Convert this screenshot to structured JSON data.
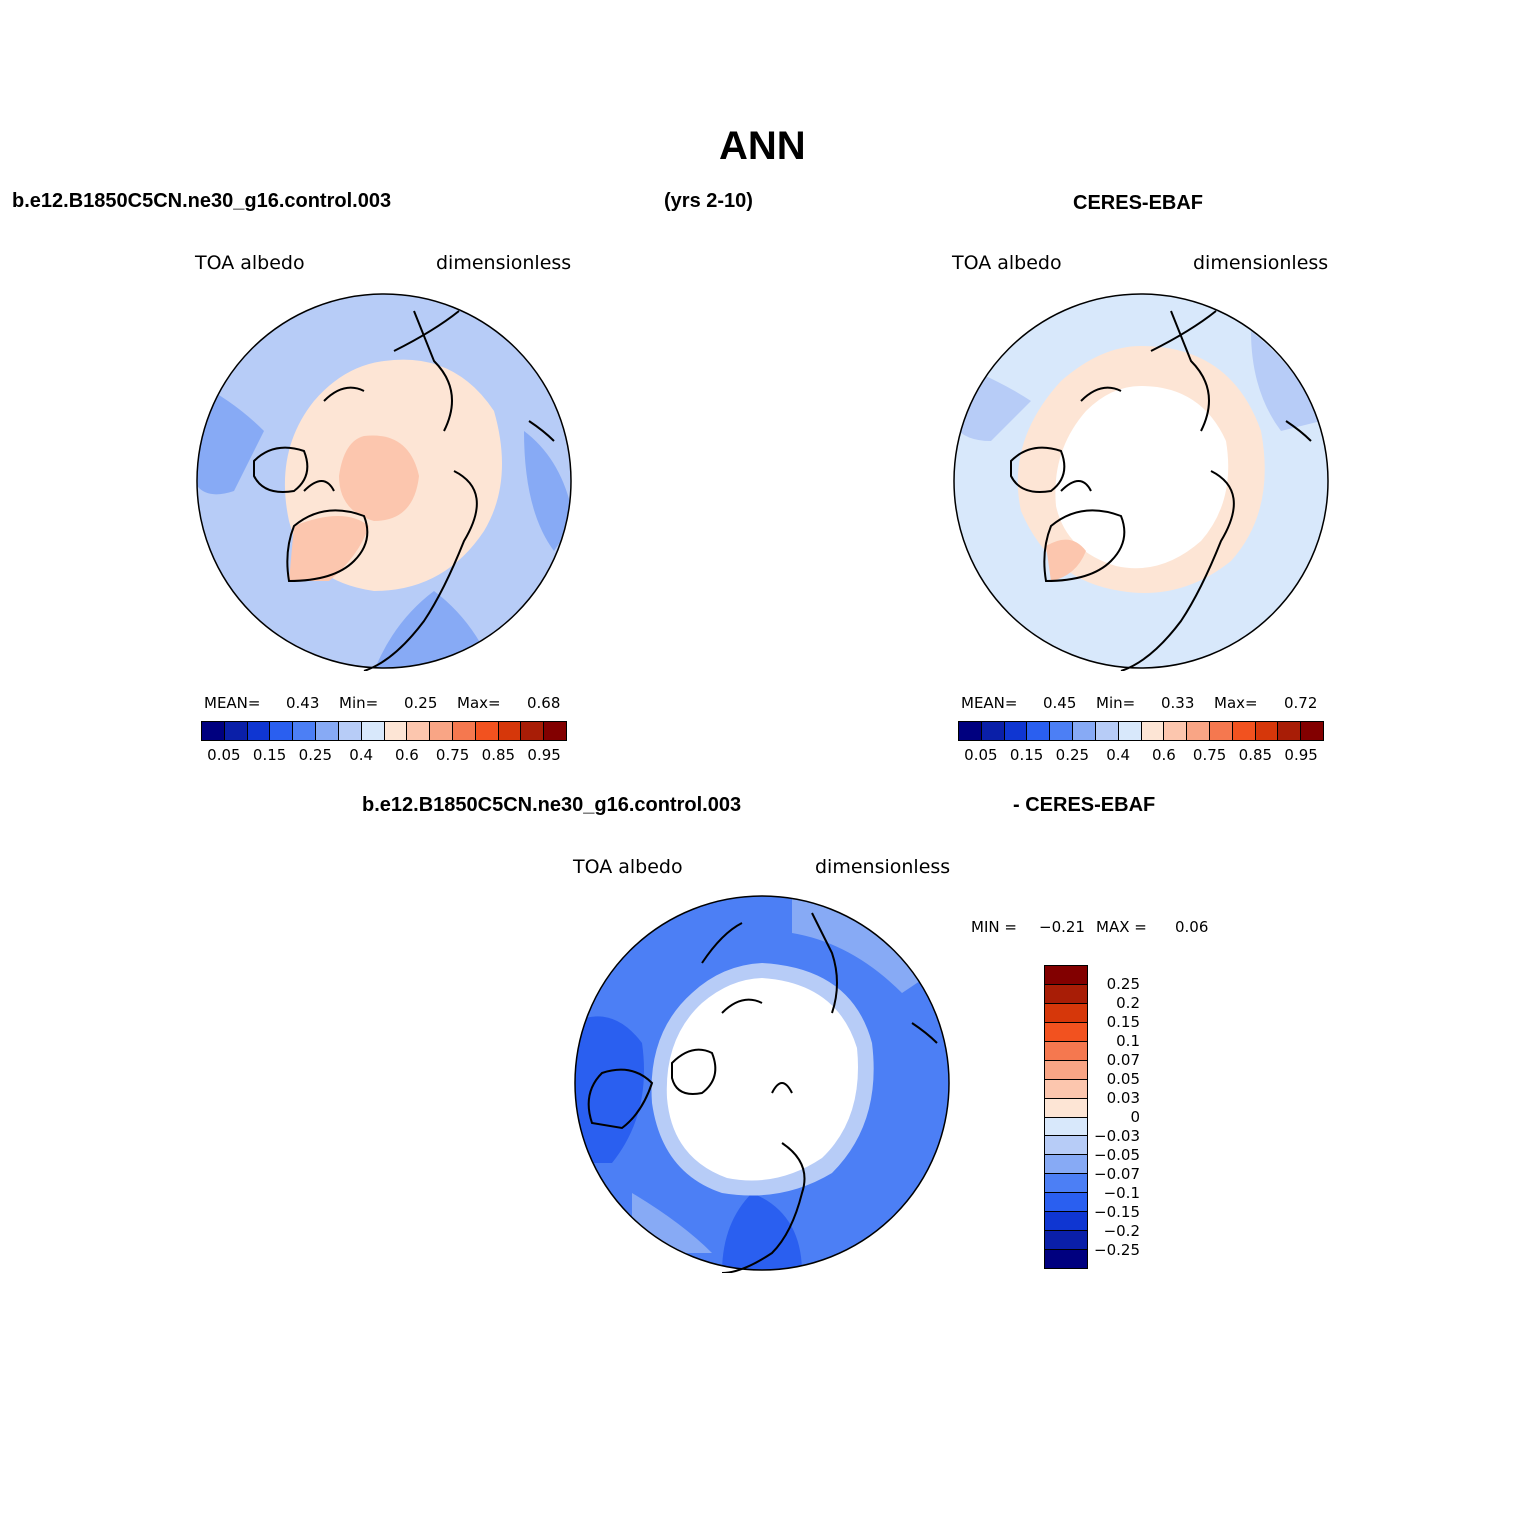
{
  "title": "ANN",
  "header": {
    "model": "b.e12.B1850C5CN.ne30_g16.control.003",
    "years": "(yrs 2-10)",
    "obs": "CERES-EBAF"
  },
  "diff_header": {
    "model": "b.e12.B1850C5CN.ne30_g16.control.003",
    "obs": "- CERES-EBAF"
  },
  "panels": [
    {
      "id": "model",
      "variable": "TOA albedo",
      "units": "dimensionless",
      "mean_label": "MEAN=",
      "mean": "0.43",
      "min_label": "Min=",
      "min": "0.25",
      "max_label": "Max=",
      "max": "0.68"
    },
    {
      "id": "obs",
      "variable": "TOA albedo",
      "units": "dimensionless",
      "mean_label": "MEAN=",
      "mean": "0.45",
      "min_label": "Min=",
      "min": "0.33",
      "max_label": "Max=",
      "max": "0.72"
    },
    {
      "id": "diff",
      "variable": "TOA albedo",
      "units": "dimensionless",
      "min_label": "MIN =",
      "min": "−0.21",
      "max_label": "MAX =",
      "max": "0.06"
    }
  ],
  "colorbar_abs": {
    "colors": [
      "#00007f",
      "#0a1fa8",
      "#0f36d2",
      "#2a5ff0",
      "#4c7ff5",
      "#87aaf5",
      "#b7ccf7",
      "#d8e8fb",
      "#fde5d5",
      "#fcc6ae",
      "#f9a585",
      "#f5784f",
      "#f2521f",
      "#d6370a",
      "#a81d06",
      "#820000"
    ],
    "labels": [
      "0.05",
      "0.15",
      "0.25",
      "0.4",
      "0.6",
      "0.75",
      "0.85",
      "0.95"
    ]
  },
  "colorbar_diff": {
    "colors": [
      "#820000",
      "#a81d06",
      "#d6370a",
      "#f2521f",
      "#f5784f",
      "#f9a585",
      "#fcc6ae",
      "#fde5d5",
      "#d8e8fb",
      "#b7ccf7",
      "#87aaf5",
      "#4c7ff5",
      "#2a5ff0",
      "#0f36d2",
      "#0a1fa8",
      "#00007f"
    ],
    "labels": [
      "0.25",
      "0.2",
      "0.15",
      "0.1",
      "0.07",
      "0.05",
      "0.03",
      "0",
      "−0.03",
      "−0.05",
      "−0.07",
      "−0.1",
      "−0.15",
      "−0.2",
      "−0.25"
    ]
  },
  "map_colors": {
    "ocean_model": "#b7ccf7",
    "ice_model": "#fde5d5",
    "core_model": "#fcc6ae",
    "ocean_obs": "#d8e8fb",
    "polar_obs": "#ffffff",
    "ring_obs": "#fde5d5",
    "diff_base": "#4c7ff5",
    "diff_dark": "#2a5ff0",
    "diff_light": "#87aaf5",
    "diff_polar": "#ffffff",
    "coast": "#000000"
  }
}
